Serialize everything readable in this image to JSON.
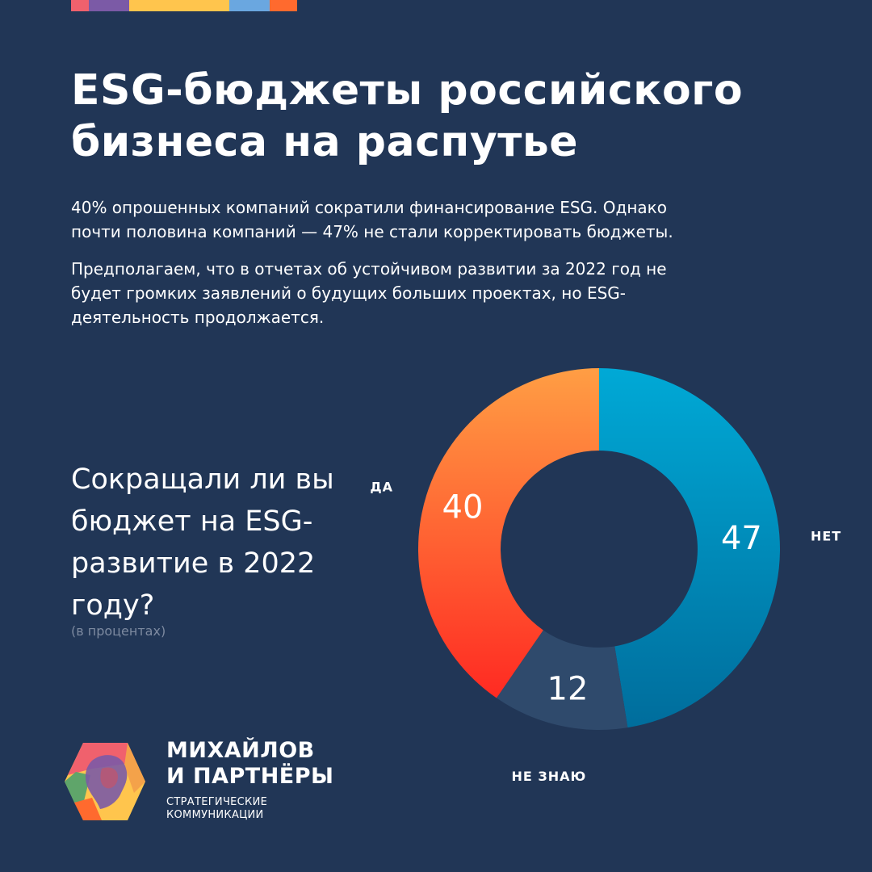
{
  "title": "ESG-бюджеты российского бизнеса на распутье",
  "paragraphs": [
    "40% опрошенных компаний сократили финансирование ESG. Однако почти половина компаний — 47% не стали корректировать бюджеты.",
    "Предполагаем, что в отчетах об устойчивом развитии за 2022 год не будет громких заявлений о будущих больших проектах, но ESG-деятельность продолжается."
  ],
  "question": "Сокращали ли вы бюджет на ESG-развитие в 2022 году?",
  "unit_note": "(в процентах)",
  "chart_data": {
    "type": "pie",
    "donut": true,
    "slices": [
      {
        "label": "НЕТ",
        "value": 47,
        "color": "#0a8cbc"
      },
      {
        "label": "НЕ ЗНАЮ",
        "value": 12,
        "color": "#2f4a6c"
      },
      {
        "label": "ДА",
        "value": 40,
        "color": "#ff5a2e"
      }
    ]
  },
  "brand": {
    "name_line1": "МИХАЙЛОВ",
    "name_line2": "И ПАРТНЁРЫ",
    "tagline_line1": "СТРАТЕГИЧЕСКИЕ",
    "tagline_line2": "КОММУНИКАЦИИ",
    "strip_colors": [
      "#f0616d",
      "#7b5aa6",
      "#ffc54d",
      "#6aa7e0",
      "#ff6a2e"
    ],
    "logo_icon": "hexagon-portrait-logo"
  }
}
